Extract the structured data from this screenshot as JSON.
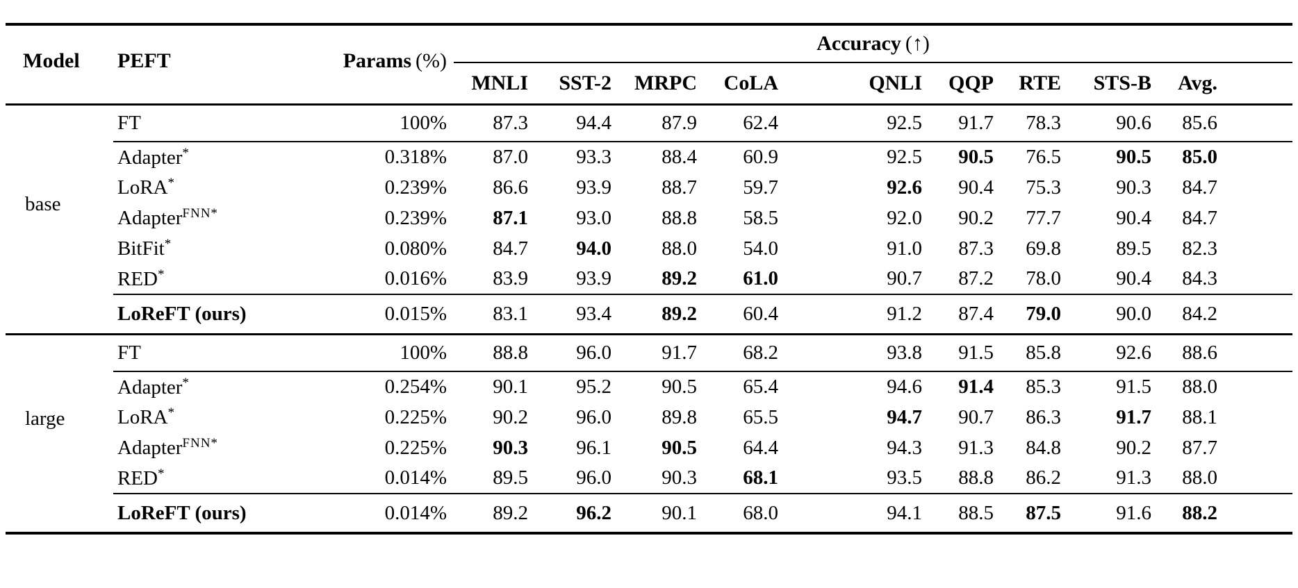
{
  "page": {
    "background_color": "#ffffff",
    "text_color": "#000000",
    "rule_color": "#000000"
  },
  "table": {
    "headers": {
      "model": "Model",
      "peft": "PEFT",
      "params_bold": "Params",
      "params_unit": "(%)",
      "accuracy_bold": "Accuracy",
      "accuracy_arrow": "(↑)",
      "tasks": [
        "MNLI",
        "SST-2",
        "MRPC",
        "CoLA",
        "QNLI",
        "QQP",
        "RTE",
        "STS-B",
        "Avg."
      ]
    },
    "groups": [
      {
        "model_label": "base",
        "rows": [
          {
            "type": "ft",
            "peft": "FT",
            "sup": "",
            "params": "100%",
            "scores": [
              "87.3",
              "94.4",
              "87.9",
              "62.4",
              "92.5",
              "91.7",
              "78.3",
              "90.6",
              "85.6"
            ],
            "bold": []
          },
          {
            "type": "method",
            "peft": "Adapter",
            "sup": "*",
            "params": "0.318%",
            "scores": [
              "87.0",
              "93.3",
              "88.4",
              "60.9",
              "92.5",
              "90.5",
              "76.5",
              "90.5",
              "85.0"
            ],
            "bold": [
              5,
              7,
              8
            ]
          },
          {
            "type": "method",
            "peft": "LoRA",
            "sup": "*",
            "params": "0.239%",
            "scores": [
              "86.6",
              "93.9",
              "88.7",
              "59.7",
              "92.6",
              "90.4",
              "75.3",
              "90.3",
              "84.7"
            ],
            "bold": [
              4
            ]
          },
          {
            "type": "method",
            "peft": "Adapter",
            "sup": "FNN*",
            "params": "0.239%",
            "scores": [
              "87.1",
              "93.0",
              "88.8",
              "58.5",
              "92.0",
              "90.2",
              "77.7",
              "90.4",
              "84.7"
            ],
            "bold": [
              0
            ]
          },
          {
            "type": "method",
            "peft": "BitFit",
            "sup": "*",
            "params": "0.080%",
            "scores": [
              "84.7",
              "94.0",
              "88.0",
              "54.0",
              "91.0",
              "87.3",
              "69.8",
              "89.5",
              "82.3"
            ],
            "bold": [
              1
            ]
          },
          {
            "type": "method",
            "peft": "RED",
            "sup": "*",
            "params": "0.016%",
            "scores": [
              "83.9",
              "93.9",
              "89.2",
              "61.0",
              "90.7",
              "87.2",
              "78.0",
              "90.4",
              "84.3"
            ],
            "bold": [
              2,
              3
            ]
          },
          {
            "type": "ours",
            "peft": "LoReFT (ours)",
            "sup": "",
            "params": "0.015%",
            "scores": [
              "83.1",
              "93.4",
              "89.2",
              "60.4",
              "91.2",
              "87.4",
              "79.0",
              "90.0",
              "84.2"
            ],
            "bold": [
              2,
              6
            ]
          }
        ]
      },
      {
        "model_label": "large",
        "rows": [
          {
            "type": "ft",
            "peft": "FT",
            "sup": "",
            "params": "100%",
            "scores": [
              "88.8",
              "96.0",
              "91.7",
              "68.2",
              "93.8",
              "91.5",
              "85.8",
              "92.6",
              "88.6"
            ],
            "bold": []
          },
          {
            "type": "method",
            "peft": "Adapter",
            "sup": "*",
            "params": "0.254%",
            "scores": [
              "90.1",
              "95.2",
              "90.5",
              "65.4",
              "94.6",
              "91.4",
              "85.3",
              "91.5",
              "88.0"
            ],
            "bold": [
              5
            ]
          },
          {
            "type": "method",
            "peft": "LoRA",
            "sup": "*",
            "params": "0.225%",
            "scores": [
              "90.2",
              "96.0",
              "89.8",
              "65.5",
              "94.7",
              "90.7",
              "86.3",
              "91.7",
              "88.1"
            ],
            "bold": [
              4,
              7
            ]
          },
          {
            "type": "method",
            "peft": "Adapter",
            "sup": "FNN*",
            "params": "0.225%",
            "scores": [
              "90.3",
              "96.1",
              "90.5",
              "64.4",
              "94.3",
              "91.3",
              "84.8",
              "90.2",
              "87.7"
            ],
            "bold": [
              0,
              2
            ]
          },
          {
            "type": "method",
            "peft": "RED",
            "sup": "*",
            "params": "0.014%",
            "scores": [
              "89.5",
              "96.0",
              "90.3",
              "68.1",
              "93.5",
              "88.8",
              "86.2",
              "91.3",
              "88.0"
            ],
            "bold": [
              3
            ]
          },
          {
            "type": "ours",
            "peft": "LoReFT (ours)",
            "sup": "",
            "params": "0.014%",
            "scores": [
              "89.2",
              "96.2",
              "90.1",
              "68.0",
              "94.1",
              "88.5",
              "87.5",
              "91.6",
              "88.2"
            ],
            "bold": [
              1,
              6,
              8
            ]
          }
        ]
      }
    ]
  }
}
